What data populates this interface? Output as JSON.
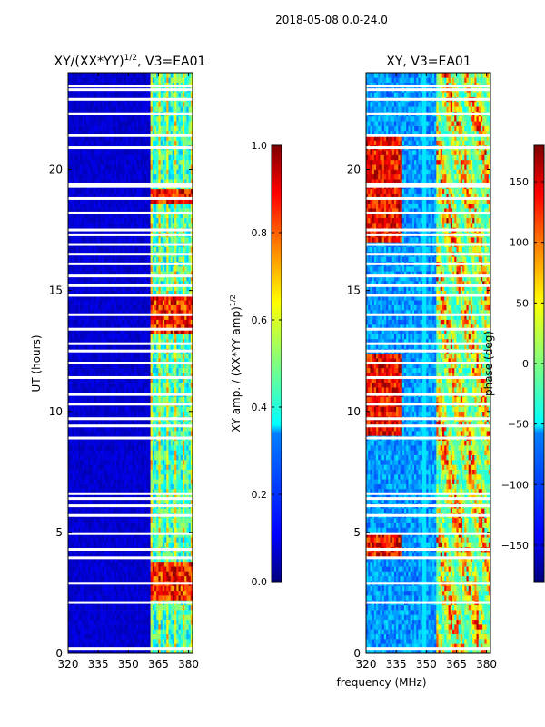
{
  "suptitle": "2018-05-08 0.0-24.0",
  "xlabel_shared": "frequency (MHz)",
  "chart_data": [
    {
      "type": "heatmap",
      "title_main": "XY/(XX*YY)",
      "title_sup": "1/2",
      "title_rest": ", V3=EA01",
      "xlabel": "",
      "ylabel": "UT (hours)",
      "xlim": [
        320,
        382
      ],
      "ylim": [
        0,
        24
      ],
      "xticks": [
        320,
        335,
        350,
        365,
        380
      ],
      "yticks": [
        0,
        5,
        10,
        15,
        20
      ],
      "colorbar": {
        "label": "XY amp. / (XX*YY amp)",
        "label_sup": "1/2",
        "range": [
          0.0,
          1.0
        ],
        "ticks": [
          "0.0",
          "0.2",
          "0.4",
          "0.6",
          "0.8",
          "1.0"
        ],
        "colormap": "jet"
      }
    },
    {
      "type": "heatmap",
      "title": "XY, V3=EA01",
      "xlabel": "frequency (MHz)",
      "ylabel": "",
      "xlim": [
        320,
        382
      ],
      "ylim": [
        0,
        24
      ],
      "xticks": [
        320,
        335,
        350,
        365,
        380
      ],
      "yticks": [
        0,
        5,
        10,
        15,
        20
      ],
      "colorbar": {
        "label": "phase (deg)",
        "range": [
          -180,
          180
        ],
        "ticks": [
          "150",
          "100",
          "50",
          "0",
          "−50",
          "−100",
          "−150"
        ],
        "colormap": "jet"
      }
    }
  ],
  "colors": {
    "jet": [
      "#00007f",
      "#0000ff",
      "#007fff",
      "#00ffff",
      "#7fff7f",
      "#ffff00",
      "#ff7f00",
      "#ff0000",
      "#7f0000"
    ],
    "background": "#ffffff"
  }
}
